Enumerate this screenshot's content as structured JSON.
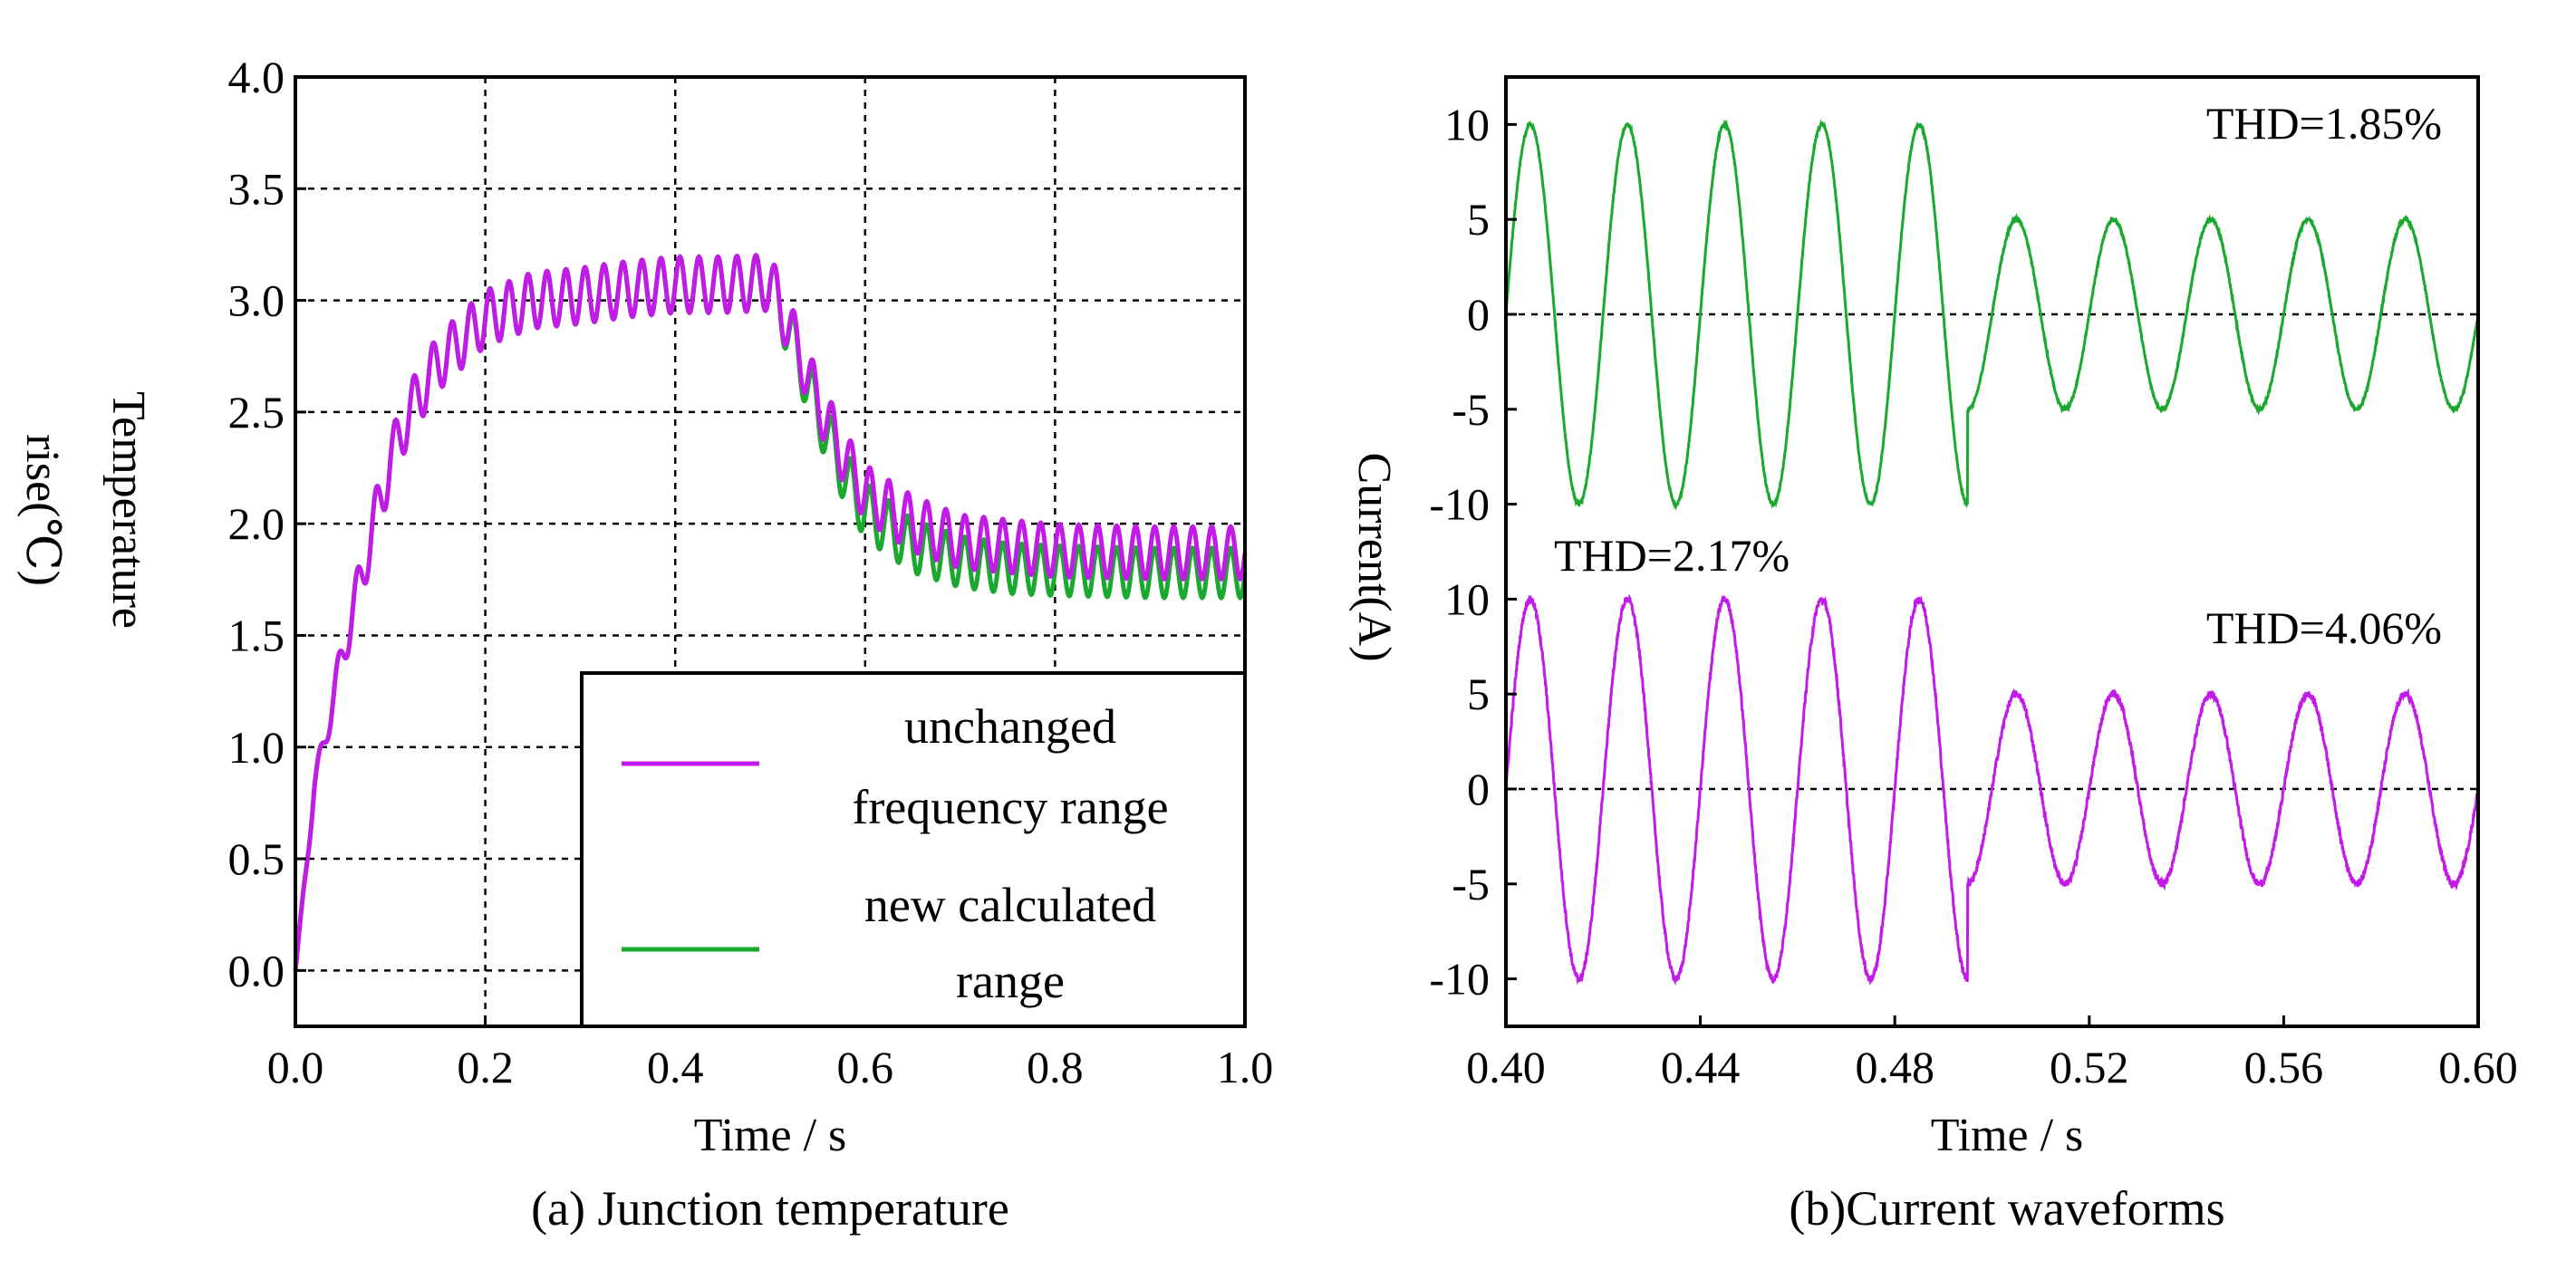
{
  "chart_data": [
    {
      "type": "line",
      "id": "a",
      "caption": "(a) Junction temperature",
      "xlabel": "Time / s",
      "ylabel_line1": "Temperature",
      "ylabel_line2": "rise(℃)",
      "xlim": [
        0.0,
        1.0
      ],
      "ylim": [
        -0.25,
        4.0
      ],
      "xticks": [
        0.0,
        0.2,
        0.4,
        0.6,
        0.8,
        1.0
      ],
      "xtick_labels": [
        "0.0",
        "0.2",
        "0.4",
        "0.6",
        "0.8",
        "1.0"
      ],
      "yticks": [
        0.0,
        0.5,
        1.0,
        1.5,
        2.0,
        2.5,
        3.0,
        3.5,
        4.0
      ],
      "ytick_labels": [
        "0.0",
        "0.5",
        "1.0",
        "1.5",
        "2.0",
        "2.5",
        "3.0",
        "3.5",
        "4.0"
      ],
      "grid": true,
      "legend_position": "bottom-right",
      "series": [
        {
          "name_line1": "unchanged",
          "name_line2": "frequency range",
          "color": "#c21be8",
          "ripple_period": 0.02,
          "ripple_amplitude_peak": 0.25,
          "points": [
            [
              0.0,
              0.0
            ],
            [
              0.02,
              0.82
            ],
            [
              0.05,
              1.42
            ],
            [
              0.08,
              1.95
            ],
            [
              0.1,
              2.28
            ],
            [
              0.12,
              2.5
            ],
            [
              0.15,
              2.72
            ],
            [
              0.2,
              2.92
            ],
            [
              0.25,
              3.0
            ],
            [
              0.3,
              3.02
            ],
            [
              0.35,
              3.05
            ],
            [
              0.4,
              3.07
            ],
            [
              0.45,
              3.07
            ],
            [
              0.5,
              3.08
            ],
            [
              0.52,
              2.88
            ],
            [
              0.55,
              2.55
            ],
            [
              0.58,
              2.28
            ],
            [
              0.6,
              2.14
            ],
            [
              0.65,
              2.0
            ],
            [
              0.7,
              1.92
            ],
            [
              0.75,
              1.9
            ],
            [
              0.8,
              1.88
            ],
            [
              0.9,
              1.87
            ],
            [
              1.0,
              1.87
            ]
          ]
        },
        {
          "name_line1": "new calculated",
          "name_line2": "range",
          "color": "#1aa82e",
          "ripple_period": 0.02,
          "ripple_amplitude_peak": 0.25,
          "points": [
            [
              0.0,
              0.0
            ],
            [
              0.02,
              0.82
            ],
            [
              0.05,
              1.42
            ],
            [
              0.08,
              1.95
            ],
            [
              0.1,
              2.28
            ],
            [
              0.12,
              2.5
            ],
            [
              0.15,
              2.72
            ],
            [
              0.2,
              2.92
            ],
            [
              0.25,
              3.0
            ],
            [
              0.3,
              3.02
            ],
            [
              0.35,
              3.05
            ],
            [
              0.4,
              3.07
            ],
            [
              0.45,
              3.07
            ],
            [
              0.5,
              3.08
            ],
            [
              0.52,
              2.86
            ],
            [
              0.55,
              2.5
            ],
            [
              0.58,
              2.2
            ],
            [
              0.6,
              2.06
            ],
            [
              0.65,
              1.9
            ],
            [
              0.7,
              1.83
            ],
            [
              0.75,
              1.8
            ],
            [
              0.8,
              1.79
            ],
            [
              0.9,
              1.78
            ],
            [
              1.0,
              1.78
            ]
          ]
        }
      ]
    },
    {
      "type": "line",
      "id": "b",
      "caption": "(b)Current waveforms",
      "xlabel": "Time / s",
      "ylabel": "Current(A)",
      "xlim": [
        0.4,
        0.6
      ],
      "xticks": [
        0.4,
        0.44,
        0.48,
        0.52,
        0.56,
        0.6
      ],
      "xtick_labels": [
        "0.40",
        "0.44",
        "0.48",
        "0.52",
        "0.56",
        "0.60"
      ],
      "panels": [
        {
          "ylim": [
            -12.5,
            12.5
          ],
          "yticks": [
            10,
            5,
            0,
            -5,
            -10
          ],
          "ytick_labels": [
            "10",
            "5",
            "0",
            "-5",
            "-10"
          ],
          "color": "#1aa82e",
          "frequency_hz": 50,
          "amplitude_before": 10.0,
          "amplitude_after": 5.0,
          "switch_time": 0.495,
          "noise": 0.15,
          "annotations": [
            "THD=1.85%"
          ]
        },
        {
          "ylim": [
            -12.5,
            12.5
          ],
          "yticks": [
            10,
            5,
            0,
            -5,
            -10
          ],
          "ytick_labels": [
            "10",
            "5",
            "0",
            "-5",
            "-10"
          ],
          "color": "#c21be8",
          "frequency_hz": 50,
          "amplitude_before": 10.0,
          "amplitude_after": 5.0,
          "switch_time": 0.495,
          "noise": 0.35,
          "annotations": [
            "THD=2.17%",
            "THD=4.06%"
          ]
        }
      ]
    }
  ]
}
